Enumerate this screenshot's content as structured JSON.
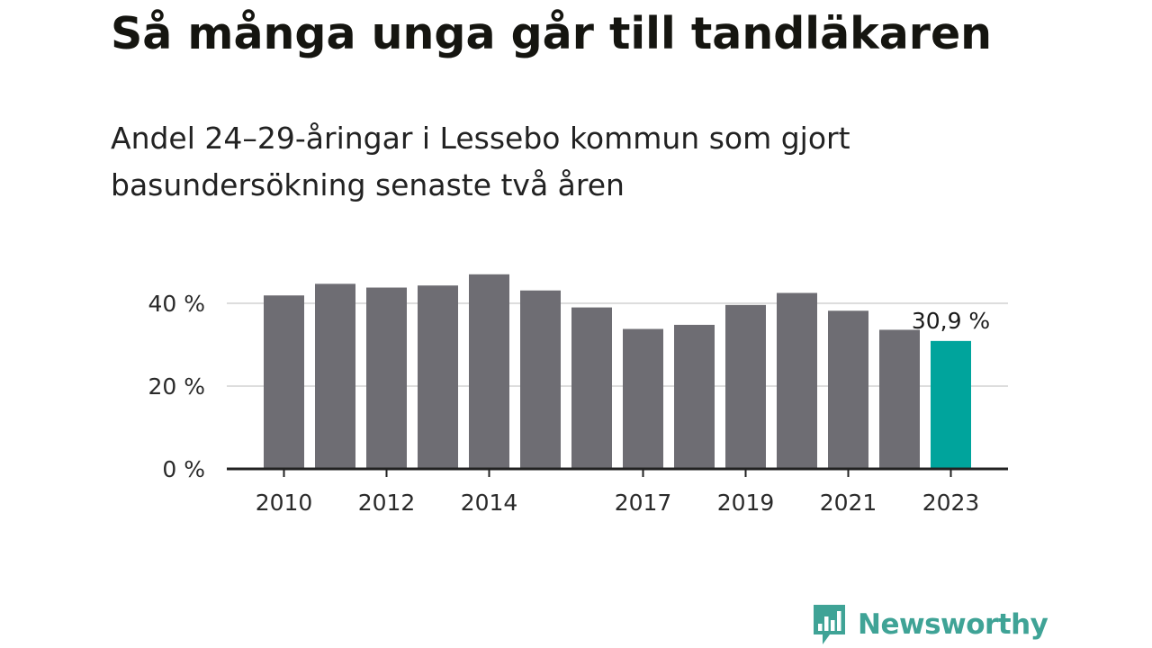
{
  "title": "Så många unga går till tandläkaren",
  "subtitle": "Andel 24–29-åringar i Lessebo kommun som gjort basundersökning senaste två åren",
  "brand": {
    "name": "Newsworthy",
    "icon": "bar-chart-speech-bubble-icon",
    "color": "#3fa396"
  },
  "colors": {
    "bar": "#6e6d73",
    "highlight": "#00a49c",
    "grid": "#dddddd",
    "axis": "#222222",
    "text": "#2a2a2a"
  },
  "chart_data": {
    "type": "bar",
    "categories": [
      "2010",
      "2011",
      "2012",
      "2013",
      "2014",
      "2015",
      "2016",
      "2017",
      "2018",
      "2019",
      "2020",
      "2021",
      "2022",
      "2023"
    ],
    "values": [
      41.9,
      44.7,
      43.8,
      44.3,
      47.0,
      43.1,
      39.0,
      33.8,
      34.8,
      39.6,
      42.5,
      38.2,
      33.6,
      30.9
    ],
    "highlight_index": 13,
    "data_label": "30,9 %",
    "xtick_labels": [
      "2010",
      "2012",
      "2014",
      "2017",
      "2019",
      "2021",
      "2023"
    ],
    "yticks": [
      0,
      20,
      40
    ],
    "ytick_labels": [
      "0 %",
      "20 %",
      "40 %"
    ],
    "ylim": [
      0,
      50
    ],
    "grid": true,
    "legend": false,
    "xlabel": "",
    "ylabel": ""
  }
}
